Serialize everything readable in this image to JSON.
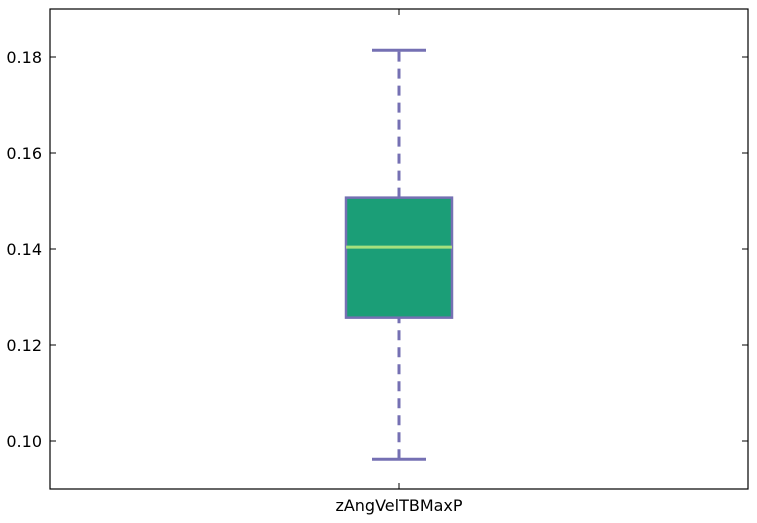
{
  "chart_data": {
    "type": "box",
    "title": "",
    "xlabel": "",
    "ylabel": "",
    "categories": [
      "zAngVelTBMaxP"
    ],
    "boxes": [
      {
        "category": "zAngVelTBMaxP",
        "whisker_low": 0.0962,
        "q1": 0.1257,
        "median": 0.1404,
        "q3": 0.1507,
        "whisker_high": 0.1814
      }
    ],
    "ylim": [
      0.09,
      0.19
    ],
    "y_ticks": [
      0.1,
      0.12,
      0.14,
      0.16,
      0.18
    ],
    "y_tick_labels": [
      "0.10",
      "0.12",
      "0.14",
      "0.16",
      "0.18"
    ],
    "grid": false,
    "colors": {
      "box_fill": "#1b9e77",
      "box_edge": "#7570b3",
      "median": "#a6e07e",
      "whisker": "#7570b3",
      "cap": "#7570b3"
    }
  }
}
